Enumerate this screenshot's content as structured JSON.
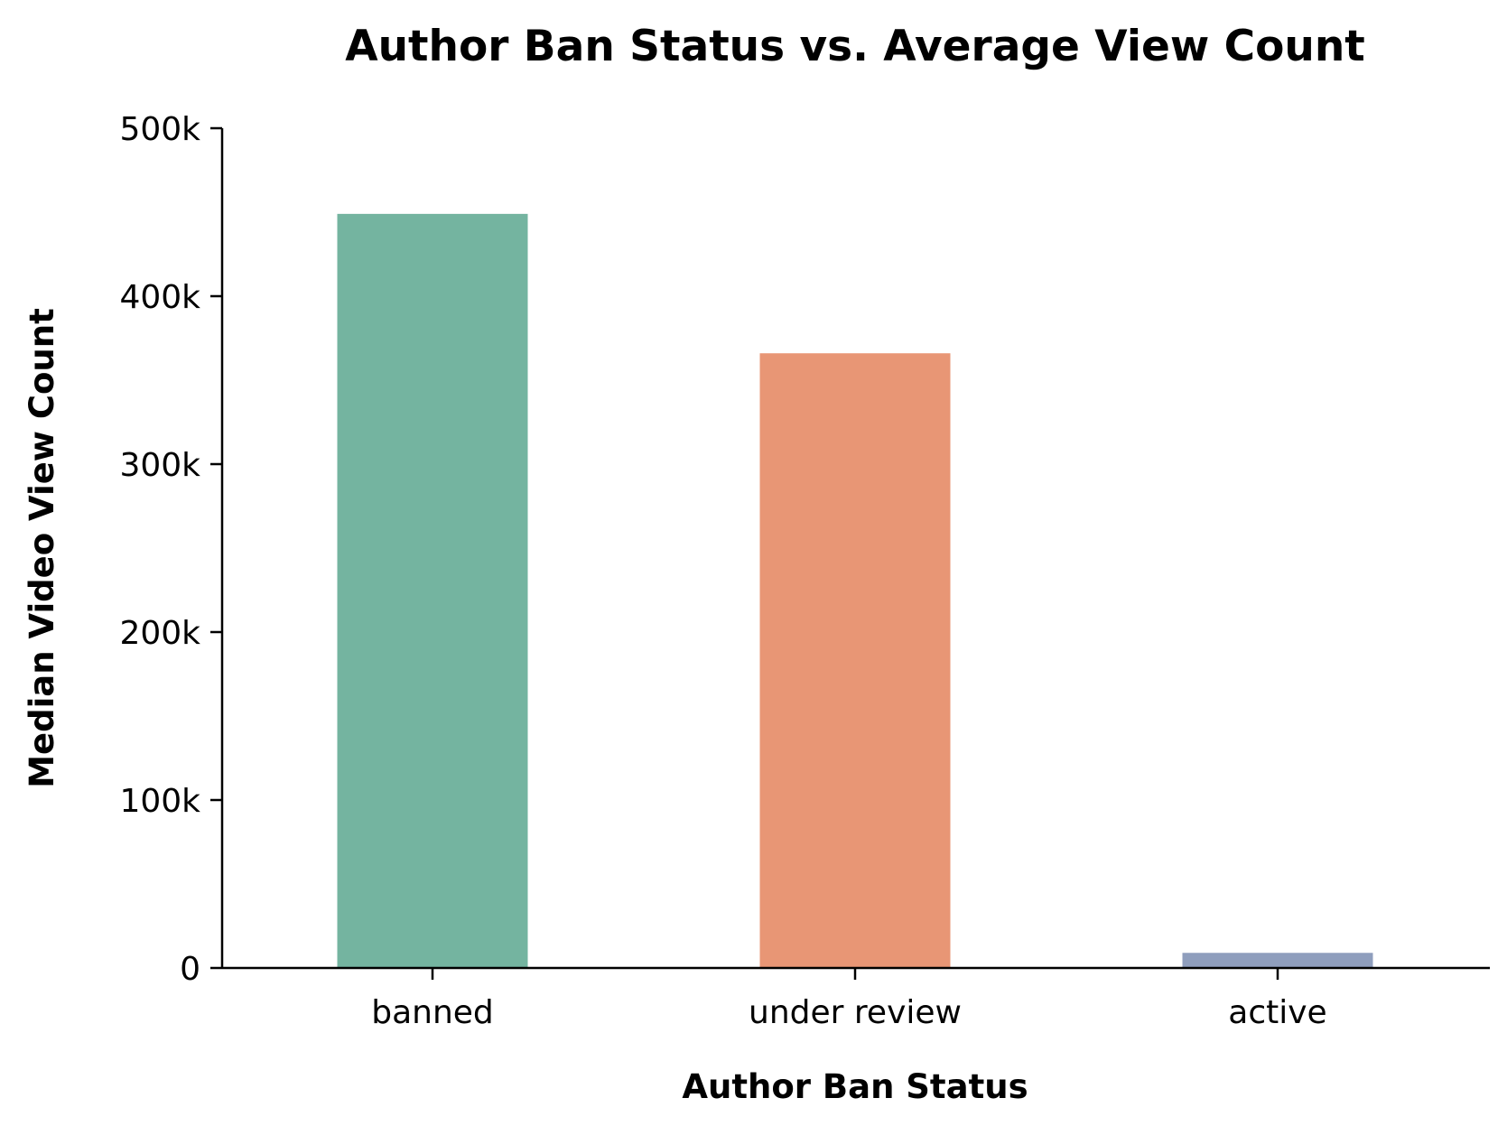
{
  "chart_data": {
    "type": "bar",
    "title": "Author Ban Status vs. Average View Count",
    "xlabel": "Author Ban Status",
    "ylabel": "Median Video View Count",
    "categories": [
      "banned",
      "under review",
      "active"
    ],
    "values": [
      449000,
      366000,
      9000
    ],
    "colors": [
      "#74b4a0",
      "#e89675",
      "#8f9ebd"
    ],
    "ylim": [
      0,
      500000
    ],
    "yticks": [
      0,
      100000,
      200000,
      300000,
      400000,
      500000
    ],
    "ytick_labels": [
      "0",
      "100k",
      "200k",
      "300k",
      "400k",
      "500k"
    ],
    "grid": false,
    "legend": "none"
  }
}
